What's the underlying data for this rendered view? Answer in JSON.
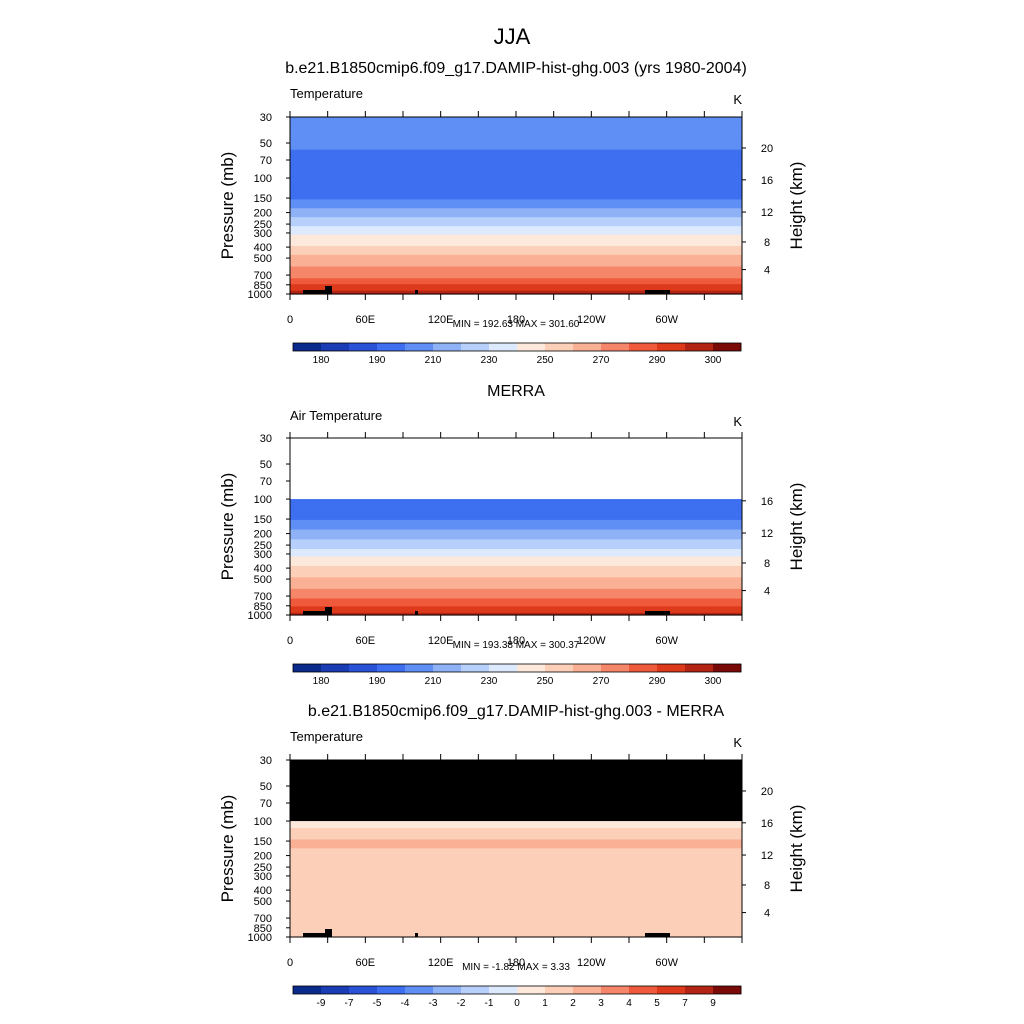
{
  "main_title": "JJA",
  "chart_data": [
    {
      "type": "heatmap",
      "title": "b.e21.B1850cmip6.f09_g17.DAMIP-hist-ghg.003 (yrs 1980-2004)",
      "left_label": "Temperature",
      "units": "K",
      "ylabel": "Pressure (mb)",
      "y2label": "Height (km)",
      "pressure_ticks": [
        "30",
        "50",
        "70",
        "100",
        "150",
        "200",
        "250",
        "300",
        "400",
        "500",
        "700",
        "850",
        "1000"
      ],
      "height_ticks": [
        "20",
        "16",
        "12",
        "8",
        "4"
      ],
      "x_ticks": [
        "0",
        "60E",
        "120E",
        "180",
        "120W",
        "60W"
      ],
      "stats": "MIN = 192.63  MAX = 301.60",
      "top_pressure_mb": 30,
      "masked_above_mb": null,
      "colorbar_levels": [
        180,
        185,
        190,
        200,
        210,
        220,
        230,
        240,
        250,
        260,
        270,
        280,
        290,
        295,
        300
      ],
      "colorbar_labels": [
        "180",
        "190",
        "210",
        "230",
        "250",
        "270",
        "290",
        "300"
      ],
      "profile": [
        [
          30,
          210
        ],
        [
          50,
          205
        ],
        [
          70,
          192
        ],
        [
          100,
          190
        ],
        [
          150,
          200
        ],
        [
          200,
          215
        ],
        [
          250,
          225
        ],
        [
          300,
          238
        ],
        [
          400,
          252
        ],
        [
          500,
          262
        ],
        [
          700,
          277
        ],
        [
          850,
          290
        ],
        [
          1000,
          297
        ]
      ]
    },
    {
      "type": "heatmap",
      "title": "MERRA",
      "left_label": "Air Temperature",
      "units": "K",
      "ylabel": "Pressure (mb)",
      "y2label": "Height (km)",
      "pressure_ticks": [
        "30",
        "50",
        "70",
        "100",
        "150",
        "200",
        "250",
        "300",
        "400",
        "500",
        "700",
        "850",
        "1000"
      ],
      "height_ticks": [
        "16",
        "12",
        "8",
        "4"
      ],
      "x_ticks": [
        "0",
        "60E",
        "120E",
        "180",
        "120W",
        "60W"
      ],
      "stats": "MIN = 193.38  MAX = 300.37",
      "top_pressure_mb": 100,
      "masked_above_mb": null,
      "colorbar_levels": [
        180,
        185,
        190,
        200,
        210,
        220,
        230,
        240,
        250,
        260,
        270,
        280,
        290,
        295,
        300
      ],
      "colorbar_labels": [
        "180",
        "190",
        "210",
        "230",
        "250",
        "270",
        "290",
        "300"
      ],
      "profile": [
        [
          100,
          192
        ],
        [
          150,
          200
        ],
        [
          200,
          215
        ],
        [
          250,
          225
        ],
        [
          300,
          238
        ],
        [
          400,
          252
        ],
        [
          500,
          262
        ],
        [
          700,
          277
        ],
        [
          850,
          290
        ],
        [
          1000,
          296
        ]
      ]
    },
    {
      "type": "heatmap",
      "title": "b.e21.B1850cmip6.f09_g17.DAMIP-hist-ghg.003 - MERRA",
      "left_label": "Temperature",
      "units": "K",
      "ylabel": "Pressure (mb)",
      "y2label": "Height (km)",
      "pressure_ticks": [
        "30",
        "50",
        "70",
        "100",
        "150",
        "200",
        "250",
        "300",
        "400",
        "500",
        "700",
        "850",
        "1000"
      ],
      "height_ticks": [
        "20",
        "16",
        "12",
        "8",
        "4"
      ],
      "x_ticks": [
        "0",
        "60E",
        "120E",
        "180",
        "120W",
        "60W"
      ],
      "stats": "MIN = -1.82  MAX =  3.33",
      "top_pressure_mb": 30,
      "masked_above_mb": 100,
      "colorbar_levels": [
        -11,
        -9,
        -7,
        -5,
        -4,
        -3,
        -2,
        -1,
        0,
        1,
        2,
        3,
        4,
        5,
        7,
        9
      ],
      "colorbar_labels": [
        "-9",
        "-7",
        "-5",
        "-4",
        "-3",
        "-2",
        "-1",
        "0",
        "1",
        "2",
        "3",
        "4",
        "5",
        "7",
        "9"
      ],
      "profile": [
        [
          100,
          -0.5
        ],
        [
          150,
          1.2
        ],
        [
          200,
          0.8
        ],
        [
          300,
          0.6
        ],
        [
          400,
          0.9
        ],
        [
          500,
          0.6
        ],
        [
          700,
          0.5
        ],
        [
          850,
          0.2
        ],
        [
          1000,
          0.5
        ]
      ]
    }
  ],
  "colors": {
    "palette": [
      "#0a2a8c",
      "#1a3cb4",
      "#2a52d6",
      "#3d6ff0",
      "#5f8ff4",
      "#8fb2f7",
      "#b6d0fb",
      "#dde9fd",
      "#fde8dc",
      "#fcd0b8",
      "#f9b094",
      "#f6866a",
      "#f05a3c",
      "#dd3a1c",
      "#b42414",
      "#7a0a08"
    ],
    "mask": "#000000"
  }
}
